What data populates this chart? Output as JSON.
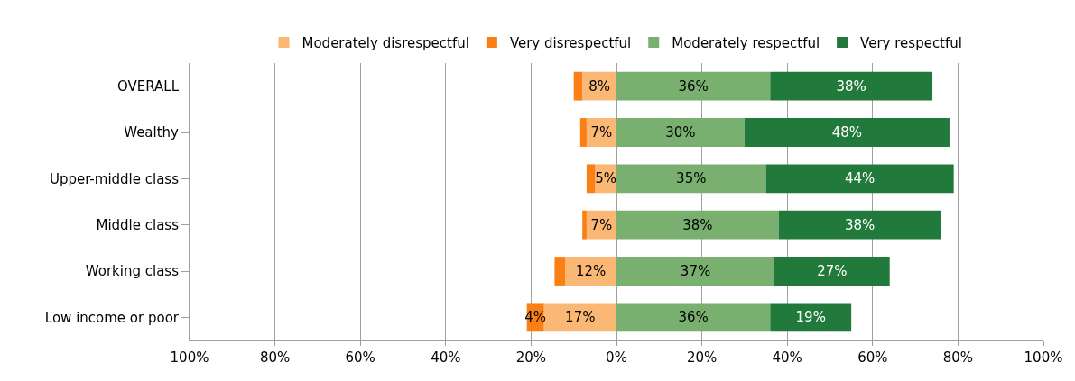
{
  "chart_data": {
    "type": "bar",
    "orientation": "horizontal",
    "categories": [
      "OVERALL",
      "Wealthy",
      "Upper-middle class",
      "Middle class",
      "Working class",
      "Low income or poor"
    ],
    "series": [
      {
        "name": "Moderately disrespectful",
        "color": "#fbb874",
        "values": [
          8,
          7,
          5,
          7,
          12,
          17
        ],
        "base": [
          -8,
          -7,
          -5,
          -7,
          -12,
          -17
        ],
        "value_labels": [
          "8%",
          "7%",
          "5%",
          "7%",
          "12%",
          "17%"
        ]
      },
      {
        "name": "Very disrespectful",
        "color": "#fa7f14",
        "values": [
          2,
          1.5,
          2,
          1,
          2.5,
          4
        ],
        "base": [
          -10,
          -8.5,
          -7,
          -8,
          -14.5,
          -21
        ],
        "value_labels": [
          null,
          null,
          null,
          null,
          null,
          "4%"
        ]
      },
      {
        "name": "Moderately respectful",
        "color": "#79b070",
        "values": [
          36,
          30,
          35,
          38,
          37,
          36
        ],
        "base": [
          0,
          0,
          0,
          0,
          0,
          0
        ],
        "value_labels": [
          "36%",
          "30%",
          "35%",
          "38%",
          "37%",
          "36%"
        ]
      },
      {
        "name": "Very respectful",
        "color": "#217a3b",
        "values": [
          38,
          48,
          44,
          38,
          27,
          19
        ],
        "base": [
          36,
          30,
          35,
          38,
          37,
          36
        ],
        "value_labels": [
          "38%",
          "48%",
          "44%",
          "38%",
          "27%",
          "19%"
        ]
      }
    ],
    "xlim": [
      -100,
      100
    ],
    "xticks": [
      {
        "value": -100,
        "label": "100%"
      },
      {
        "value": -80,
        "label": "80%"
      },
      {
        "value": -60,
        "label": "60%"
      },
      {
        "value": -40,
        "label": "40%"
      },
      {
        "value": -20,
        "label": "20%"
      },
      {
        "value": 0,
        "label": "0%"
      },
      {
        "value": 20,
        "label": "20%"
      },
      {
        "value": 40,
        "label": "40%"
      },
      {
        "value": 60,
        "label": "60%"
      },
      {
        "value": 80,
        "label": "80%"
      },
      {
        "value": 100,
        "label": "100%"
      }
    ],
    "grid": "x",
    "legend": "top"
  }
}
